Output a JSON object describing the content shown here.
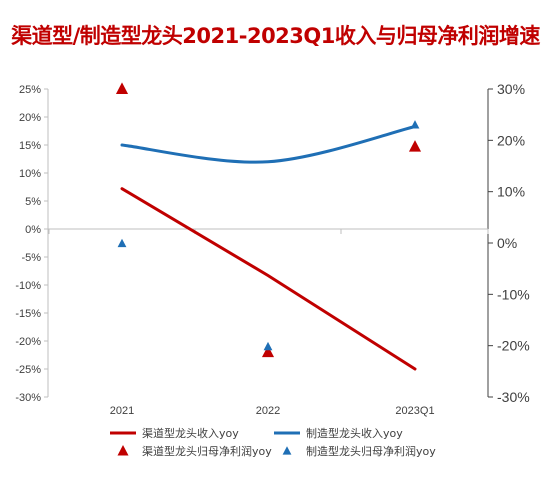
{
  "chart_data": {
    "type": "line",
    "title": "渠道型/制造型龙头2021-2023Q1收入与归母净利润增速",
    "categories": [
      "2021",
      "2022",
      "2023Q1"
    ],
    "left_axis": {
      "ylim": [
        -0.3,
        0.25
      ],
      "ticks": [
        "25%",
        "20%",
        "15%",
        "10%",
        "5%",
        "0%",
        "-5%",
        "-10%",
        "-15%",
        "-20%",
        "-25%",
        "-30%"
      ]
    },
    "right_axis": {
      "ylim": [
        -0.3,
        0.3
      ],
      "ticks": [
        "30%",
        "20%",
        "10%",
        "0%",
        "-10%",
        "-20%",
        "-30%"
      ]
    },
    "series": [
      {
        "name": "渠道型龙头收入yoy",
        "kind": "line",
        "axis": "left",
        "color": "#c00000",
        "values": [
          0.072,
          -0.083,
          -0.25
        ],
        "smooth": false
      },
      {
        "name": "制造型龙头收入yoy",
        "kind": "line",
        "axis": "left",
        "color": "#1f6fb5",
        "values": [
          0.15,
          0.12,
          0.183
        ],
        "smooth": true
      },
      {
        "name": "渠道型龙头归母净利润yoy",
        "kind": "marker",
        "axis": "left",
        "color": "#c00000",
        "values": [
          0.25,
          -0.22,
          0.147
        ]
      },
      {
        "name": "制造型龙头归母净利润yoy",
        "kind": "marker",
        "axis": "right",
        "color": "#1f6fb5",
        "values": [
          -0.001,
          -0.202,
          0.23
        ]
      }
    ],
    "grid": false,
    "legend": "bottom"
  }
}
